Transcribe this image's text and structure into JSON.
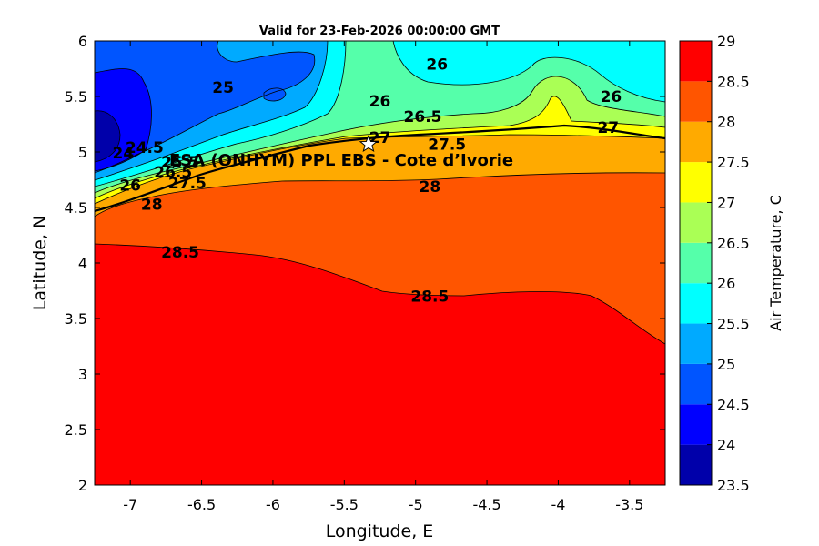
{
  "chart_data": {
    "type": "heatmap",
    "subtype": "filled-contour",
    "title": "Valid for 23-Feb-2026 00:00:00 GMT",
    "xlabel": "Longitude, E",
    "ylabel": "Latitude, N",
    "xlim": [
      -7.25,
      -3.25
    ],
    "ylim": [
      2,
      6
    ],
    "xticks": [
      "-7",
      "-6.5",
      "-6",
      "-5.5",
      "-5",
      "-4.5",
      "-4",
      "-3.5"
    ],
    "xtick_values": [
      -7,
      -6.5,
      -6,
      -5.5,
      -5,
      -4.5,
      -4,
      -3.5
    ],
    "yticks": [
      "2",
      "2.5",
      "3",
      "3.5",
      "4",
      "4.5",
      "5",
      "5.5",
      "6"
    ],
    "ytick_values": [
      2,
      2.5,
      3,
      3.5,
      4,
      4.5,
      5,
      5.5,
      6
    ],
    "colorbar": {
      "label": "Air Temperature, C",
      "ticks": [
        "23.5",
        "24",
        "24.5",
        "25",
        "25.5",
        "26",
        "26.5",
        "27",
        "27.5",
        "28",
        "28.5",
        "29"
      ],
      "levels": [
        23.5,
        24,
        24.5,
        25,
        25.5,
        26,
        26.5,
        27,
        27.5,
        28,
        28.5,
        29
      ],
      "colors": [
        "#0000aa",
        "#0000ff",
        "#0055ff",
        "#00aaff",
        "#00ffff",
        "#55ffaa",
        "#aaff55",
        "#ffff00",
        "#ffaa00",
        "#ff5500",
        "#ff0000",
        "#aa0000"
      ]
    },
    "station": {
      "name": "ESA (ONHYM) PPL EBS  - Cote d’Ivorie",
      "lon": -5.33,
      "lat": 5.07
    },
    "contour_labels": [
      {
        "text": "28.5",
        "lon": -6.65,
        "lat": 4.1
      },
      {
        "text": "28.5",
        "lon": -4.9,
        "lat": 3.7
      },
      {
        "text": "28",
        "lon": -4.9,
        "lat": 4.69
      },
      {
        "text": "28",
        "lon": -6.85,
        "lat": 4.53
      },
      {
        "text": "27.5",
        "lon": -4.78,
        "lat": 5.07
      },
      {
        "text": "27.5",
        "lon": -6.6,
        "lat": 4.72
      },
      {
        "text": "27",
        "lon": -5.25,
        "lat": 5.13
      },
      {
        "text": "27",
        "lon": -3.65,
        "lat": 5.22
      },
      {
        "text": "26.5",
        "lon": -4.95,
        "lat": 5.32
      },
      {
        "text": "26.5",
        "lon": -6.7,
        "lat": 4.82
      },
      {
        "text": "26",
        "lon": -5.25,
        "lat": 5.46
      },
      {
        "text": "26",
        "lon": -4.85,
        "lat": 5.79
      },
      {
        "text": "26",
        "lon": -3.63,
        "lat": 5.5
      },
      {
        "text": "26",
        "lon": -7.0,
        "lat": 4.7
      },
      {
        "text": "25.5",
        "lon": -6.65,
        "lat": 4.91
      },
      {
        "text": "25",
        "lon": -6.35,
        "lat": 5.58
      },
      {
        "text": "24.5",
        "lon": -6.9,
        "lat": 5.04
      },
      {
        "text": "24",
        "lon": -7.05,
        "lat": 4.99
      }
    ]
  }
}
